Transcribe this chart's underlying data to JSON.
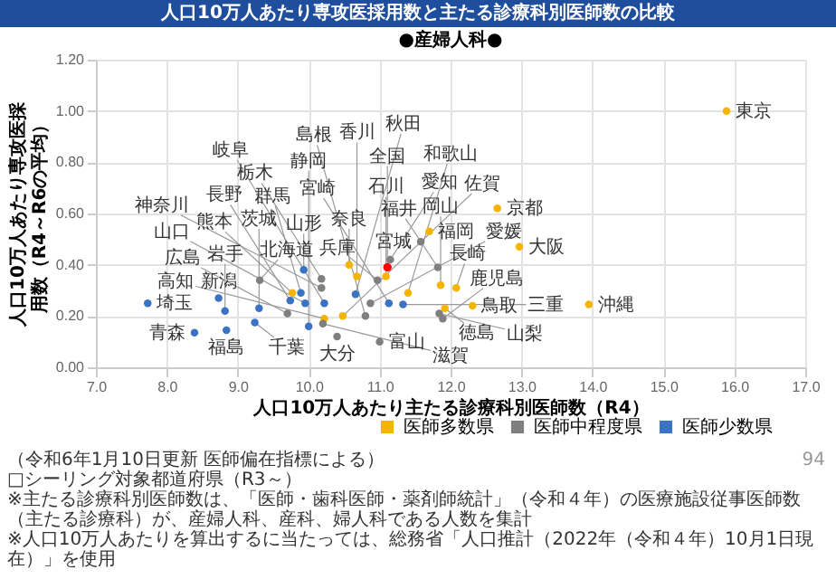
{
  "chart_data": {
    "type": "scatter",
    "title": "人口10万人あたり専攻医採用数と主たる診療科別医師数の比較",
    "subtitle": "●産婦人科●",
    "xlabel": "人口10万人あたり主たる診療科別医師数（R4）",
    "ylabel": "人口10万人あたり専攻医採用数（R4～R6の平均）",
    "xlim": [
      7,
      17
    ],
    "xticks": [
      {
        "value": 7,
        "label": "7.0"
      },
      {
        "value": 8,
        "label": "8.0"
      },
      {
        "value": 9,
        "label": "9.0"
      },
      {
        "value": 10,
        "label": "10.0"
      },
      {
        "value": 11,
        "label": "11.0"
      },
      {
        "value": 12,
        "label": "12.0"
      },
      {
        "value": 13,
        "label": "13.0"
      },
      {
        "value": 14,
        "label": "14.0"
      },
      {
        "value": 15,
        "label": "15.0"
      },
      {
        "value": 16,
        "label": "16.0"
      },
      {
        "value": 17,
        "label": "17.0"
      }
    ],
    "ylim": [
      0,
      1.2
    ],
    "yticks": [
      {
        "value": 0,
        "label": "0.00"
      },
      {
        "value": 0.2,
        "label": "0.20"
      },
      {
        "value": 0.4,
        "label": "0.40"
      },
      {
        "value": 0.6,
        "label": "0.60"
      },
      {
        "value": 0.8,
        "label": "0.80"
      },
      {
        "value": 1,
        "label": "1.00"
      },
      {
        "value": 1.2,
        "label": "1.20"
      }
    ],
    "grid": true,
    "legend": "bottom right",
    "marker": "circle",
    "series": [
      {
        "name": "医師多数県",
        "color": "#f5b400",
        "x": [
          15.89,
          12.66,
          12.97,
          11.7,
          10.57,
          10.68,
          11.09,
          11.86,
          12.08,
          11.4,
          12.31,
          11.92,
          13.95,
          9.77,
          10.22,
          10.48
        ],
        "values": [
          1.0,
          0.62,
          0.47,
          0.53,
          0.4,
          0.355,
          0.355,
          0.32,
          0.31,
          0.29,
          0.24,
          0.23,
          0.245,
          0.29,
          0.19,
          0.2
        ]
      },
      {
        "name": "医師中程度県",
        "color": "#7f7f7f",
        "x": [
          9.31,
          10.18,
          10.18,
          9.7,
          10.4,
          11.15,
          11.58,
          11.82,
          10.97,
          10.87,
          10.8,
          11.0,
          11.84,
          11.89,
          10.2
        ],
        "values": [
          0.34,
          0.345,
          0.31,
          0.21,
          0.12,
          0.42,
          0.49,
          0.39,
          0.34,
          0.25,
          0.2,
          0.1,
          0.21,
          0.19,
          0.17
        ]
      },
      {
        "name": "医師少数県",
        "color": "#3a72c4",
        "x": [
          7.73,
          8.73,
          8.39,
          8.82,
          8.84,
          9.3,
          9.24,
          9.89,
          9.74,
          9.95,
          9.93,
          10.22,
          10.0,
          10.66,
          11.13,
          11.33
        ],
        "values": [
          0.25,
          0.27,
          0.135,
          0.22,
          0.145,
          0.23,
          0.175,
          0.29,
          0.26,
          0.25,
          0.38,
          0.25,
          0.16,
          0.285,
          0.25,
          0.245
        ]
      },
      {
        "color": "#ff0000",
        "x": [
          11.11
        ],
        "values": [
          0.39
        ]
      }
    ],
    "annotations": [
      {
        "text": "東京",
        "x": 15.89,
        "y": 1.0
      },
      {
        "text": "京都",
        "x": 12.66,
        "y": 0.62
      },
      {
        "text": "大阪",
        "x": 12.97,
        "y": 0.47
      },
      {
        "text": "福岡",
        "x": 11.7,
        "y": 0.53
      },
      {
        "text": "奈良",
        "x": 10.57,
        "y": 0.4
      },
      {
        "text": "香川",
        "x": 10.68,
        "y": 0.355
      },
      {
        "text": "石川",
        "x": 11.09,
        "y": 0.355
      },
      {
        "text": "岡山",
        "x": 11.86,
        "y": 0.32
      },
      {
        "text": "長崎",
        "x": 12.08,
        "y": 0.31
      },
      {
        "text": "和歌山",
        "x": 11.4,
        "y": 0.29
      },
      {
        "text": "鳥取",
        "x": 12.31,
        "y": 0.24
      },
      {
        "text": "徳島",
        "x": 11.92,
        "y": 0.23
      },
      {
        "text": "沖縄",
        "x": 13.95,
        "y": 0.245
      },
      {
        "text": "熊本",
        "x": 9.77,
        "y": 0.29
      },
      {
        "text": "高知",
        "x": 10.22,
        "y": 0.19
      },
      {
        "text": "佐賀",
        "x": 10.48,
        "y": 0.2
      },
      {
        "text": "北海道",
        "x": 9.31,
        "y": 0.34
      },
      {
        "text": "栃木",
        "x": 10.18,
        "y": 0.345
      },
      {
        "text": "神奈川",
        "x": 10.18,
        "y": 0.31
      },
      {
        "text": "広島",
        "x": 9.7,
        "y": 0.21
      },
      {
        "text": "大分",
        "x": 10.4,
        "y": 0.12
      },
      {
        "text": "愛知",
        "x": 11.15,
        "y": 0.42
      },
      {
        "text": "宮城",
        "x": 11.58,
        "y": 0.49
      },
      {
        "text": "福井",
        "x": 11.82,
        "y": 0.39
      },
      {
        "text": "兵庫",
        "x": 10.97,
        "y": 0.34
      },
      {
        "text": "愛媛",
        "x": 10.87,
        "y": 0.25
      },
      {
        "text": "島根",
        "x": 10.8,
        "y": 0.2
      },
      {
        "text": "富山",
        "x": 11.0,
        "y": 0.1
      },
      {
        "text": "山梨",
        "x": 11.84,
        "y": 0.21
      },
      {
        "text": "鹿児島",
        "x": 11.89,
        "y": 0.19
      },
      {
        "text": "滋賀",
        "x": 10.2,
        "y": 0.17
      },
      {
        "text": "埼玉",
        "x": 7.73,
        "y": 0.25
      },
      {
        "text": "新潟",
        "x": 8.73,
        "y": 0.27
      },
      {
        "text": "青森",
        "x": 8.39,
        "y": 0.135
      },
      {
        "text": "岩手",
        "x": 8.82,
        "y": 0.22
      },
      {
        "text": "福島",
        "x": 8.84,
        "y": 0.145
      },
      {
        "text": "茨城",
        "x": 9.3,
        "y": 0.23
      },
      {
        "text": "千葉",
        "x": 9.24,
        "y": 0.175
      },
      {
        "text": "群馬",
        "x": 9.89,
        "y": 0.29
      },
      {
        "text": "長野",
        "x": 9.74,
        "y": 0.26
      },
      {
        "text": "山口",
        "x": 9.95,
        "y": 0.25
      },
      {
        "text": "山形",
        "x": 9.93,
        "y": 0.38
      },
      {
        "text": "岐阜",
        "x": 10.22,
        "y": 0.25
      },
      {
        "text": "静岡",
        "x": 10.0,
        "y": 0.16
      },
      {
        "text": "秋田",
        "x": 10.66,
        "y": 0.285
      },
      {
        "text": "宮崎",
        "x": 11.13,
        "y": 0.25
      },
      {
        "text": "三重",
        "x": 11.33,
        "y": 0.245
      },
      {
        "text": "全国",
        "x": 11.11,
        "y": 0.39
      },
      "（令和6年1月10日更新 医師偏在指標による）",
      "□シーリング対象都道府県（R3～）",
      "※主たる診療科別医師数は、「医師・歯科医師・薬剤師統計」（令和４年）の医療施設従事医師数（主たる診療科）が、産婦人科、産科、婦人科である人数を集計",
      "※人口10万人あたりを算出するに当たっては、総務省「人口推計（2022年（令和４年）10月1日現在）」を使用",
      "94"
    ]
  }
}
